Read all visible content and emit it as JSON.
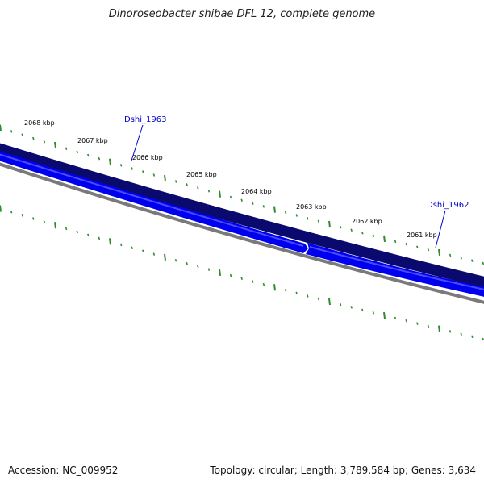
{
  "title": "Dinoroseobacter shibae DFL 12, complete genome",
  "footer": {
    "accession": "Accession: NC_009952",
    "summary": "Topology: circular; Length: 3,789,584 bp; Genes: 3,634"
  },
  "kbp_labels": [
    "2068 kbp",
    "2067 kbp",
    "2066 kbp",
    "2065 kbp",
    "2064 kbp",
    "2063 kbp",
    "2062 kbp",
    "2061 kbp"
  ],
  "genes": [
    {
      "name": "Dshi_1963"
    },
    {
      "name": "Dshi_1962"
    }
  ],
  "colors": {
    "outer_track": "#0a0a6e",
    "gene_track": "#0000ee",
    "inner_track": "#7a7a7a",
    "ticks": "#2e8b2e",
    "gene_label": "#0000cc"
  }
}
